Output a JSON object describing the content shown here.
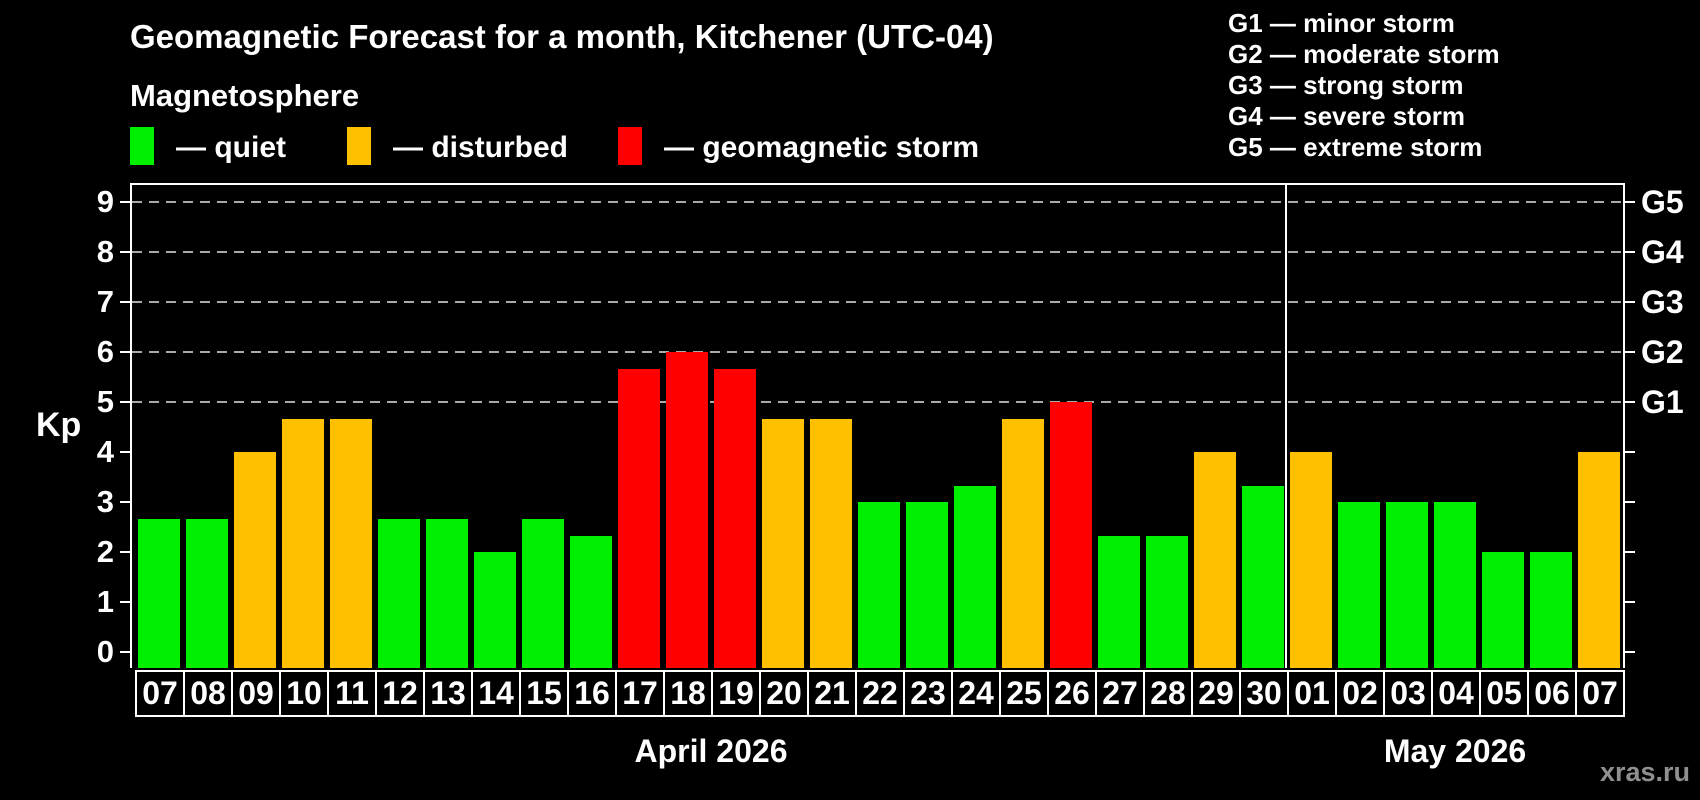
{
  "header": {
    "title": "Geomagnetic Forecast for a month, Kitchener (UTC-04)",
    "subtitle": "Magnetosphere",
    "legend": [
      {
        "name": "quiet",
        "label": "— quiet",
        "color": "#00ee00"
      },
      {
        "name": "disturbed",
        "label": "— disturbed",
        "color": "#ffc000"
      },
      {
        "name": "storm",
        "label": "— geomagnetic storm",
        "color": "#ff0000"
      }
    ]
  },
  "g_scale_legend": [
    "G1 — minor storm",
    "G2 — moderate storm",
    "G3 — strong storm",
    "G4 — severe storm",
    "G5 — extreme storm"
  ],
  "watermark": "xras.ru",
  "chart_data": {
    "type": "bar",
    "ylabel": "Kp",
    "ylim": [
      0,
      9
    ],
    "y_ticks": [
      0,
      1,
      2,
      3,
      4,
      5,
      6,
      7,
      8,
      9
    ],
    "gridlines_at": [
      5,
      6,
      7,
      8,
      9
    ],
    "grid_color": "#aaaaaa",
    "right_axis_labels": [
      {
        "kp": 5,
        "label": "G1"
      },
      {
        "kp": 6,
        "label": "G2"
      },
      {
        "kp": 7,
        "label": "G3"
      },
      {
        "kp": 8,
        "label": "G4"
      },
      {
        "kp": 9,
        "label": "G5"
      }
    ],
    "months": [
      {
        "label": "April 2026",
        "days": 24
      },
      {
        "label": "May 2026",
        "days": 7
      }
    ],
    "categories": [
      "07",
      "08",
      "09",
      "10",
      "11",
      "12",
      "13",
      "14",
      "15",
      "16",
      "17",
      "18",
      "19",
      "20",
      "21",
      "22",
      "23",
      "24",
      "25",
      "26",
      "27",
      "28",
      "29",
      "30",
      "01",
      "02",
      "03",
      "04",
      "05",
      "06",
      "07"
    ],
    "values": [
      2.67,
      2.67,
      4,
      4.67,
      4.67,
      2.67,
      2.67,
      2,
      2.67,
      2.33,
      5.67,
      6,
      5.67,
      4.67,
      4.67,
      3,
      3,
      3.33,
      4.67,
      5,
      2.33,
      2.33,
      4,
      3.33,
      4,
      3,
      3,
      3,
      2,
      2,
      4
    ],
    "statuses": [
      "quiet",
      "quiet",
      "disturbed",
      "disturbed",
      "disturbed",
      "quiet",
      "quiet",
      "quiet",
      "quiet",
      "quiet",
      "storm",
      "storm",
      "storm",
      "disturbed",
      "disturbed",
      "quiet",
      "quiet",
      "quiet",
      "disturbed",
      "storm",
      "quiet",
      "quiet",
      "disturbed",
      "quiet",
      "disturbed",
      "quiet",
      "quiet",
      "quiet",
      "quiet",
      "quiet",
      "disturbed"
    ],
    "colors": {
      "quiet": "#00ee00",
      "disturbed": "#ffc000",
      "storm": "#ff0000"
    }
  }
}
